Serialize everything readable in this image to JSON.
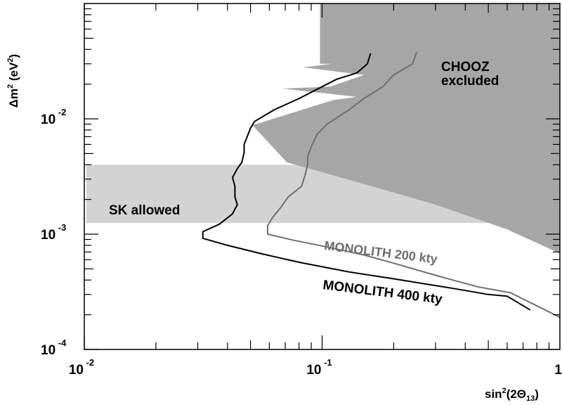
{
  "chart_data": {
    "type": "line",
    "x_scale": "log",
    "y_scale": "log",
    "xlim": [
      0.01,
      1
    ],
    "ylim": [
      0.0001,
      0.1
    ],
    "grid": false,
    "xlabel": "sin²(2Θ₁₃)",
    "ylabel": "Δm² (eV²)",
    "x_ticks": [
      {
        "value": 0.01,
        "base": "10",
        "exp": "-2"
      },
      {
        "value": 0.1,
        "base": "10",
        "exp": "-1"
      },
      {
        "value": 1,
        "base": "1",
        "exp": ""
      }
    ],
    "y_ticks": [
      {
        "value": 0.0001,
        "base": "10",
        "exp": "-4"
      },
      {
        "value": 0.001,
        "base": "10",
        "exp": "-3"
      },
      {
        "value": 0.01,
        "base": "10",
        "exp": "-2"
      }
    ],
    "regions": [
      {
        "name": "SK allowed",
        "label": "SK allowed",
        "color": "#d3d3d3",
        "x_range": [
          0.0102,
          1
        ],
        "y_range": [
          0.00125,
          0.004
        ]
      },
      {
        "name": "CHOOZ excluded",
        "label_line1": "CHOOZ",
        "label_line2": "excluded",
        "color": "#a6a6a6",
        "boundary": [
          [
            0.098,
            0.1
          ],
          [
            0.098,
            0.03
          ],
          [
            0.11,
            0.03
          ],
          [
            0.083,
            0.028
          ],
          [
            0.15,
            0.024
          ],
          [
            0.108,
            0.019
          ],
          [
            0.068,
            0.0183
          ],
          [
            0.14,
            0.0155
          ],
          [
            0.112,
            0.0146
          ],
          [
            0.051,
            0.0088
          ],
          [
            0.064,
            0.0053
          ],
          [
            0.071,
            0.0042
          ],
          [
            0.12,
            0.0031
          ],
          [
            0.2,
            0.0023
          ],
          [
            0.3,
            0.0018
          ],
          [
            0.6,
            0.0011
          ],
          [
            1.0,
            0.00068
          ],
          [
            1.0,
            0.1
          ]
        ]
      }
    ],
    "series": [
      {
        "name": "MONOLITH 400 kty",
        "color": "#000000",
        "points": [
          [
            0.16,
            0.037
          ],
          [
            0.155,
            0.03
          ],
          [
            0.14,
            0.025
          ],
          [
            0.115,
            0.022
          ],
          [
            0.1,
            0.019
          ],
          [
            0.08,
            0.015
          ],
          [
            0.063,
            0.012
          ],
          [
            0.052,
            0.0095
          ],
          [
            0.05,
            0.0083
          ],
          [
            0.047,
            0.006
          ],
          [
            0.047,
            0.0051
          ],
          [
            0.046,
            0.0042
          ],
          [
            0.044,
            0.0037
          ],
          [
            0.042,
            0.0031
          ],
          [
            0.043,
            0.0026
          ],
          [
            0.043,
            0.0021
          ],
          [
            0.044,
            0.0018
          ],
          [
            0.042,
            0.0015
          ],
          [
            0.037,
            0.00122
          ],
          [
            0.0315,
            0.00105
          ],
          [
            0.0315,
            0.00092
          ],
          [
            0.04,
            0.0008
          ],
          [
            0.055,
            0.00068
          ],
          [
            0.08,
            0.00057
          ],
          [
            0.13,
            0.00047
          ],
          [
            0.2,
            0.00041
          ],
          [
            0.35,
            0.00034
          ],
          [
            0.5,
            0.0003
          ],
          [
            0.6,
            0.00029
          ],
          [
            0.75,
            0.00022
          ]
        ]
      },
      {
        "name": "MONOLITH 200 kty",
        "color": "#6e6e6e",
        "points": [
          [
            0.25,
            0.038
          ],
          [
            0.24,
            0.03
          ],
          [
            0.2,
            0.024
          ],
          [
            0.18,
            0.019
          ],
          [
            0.15,
            0.015
          ],
          [
            0.13,
            0.012
          ],
          [
            0.105,
            0.009
          ],
          [
            0.095,
            0.0073
          ],
          [
            0.09,
            0.0057
          ],
          [
            0.087,
            0.0047
          ],
          [
            0.087,
            0.0041
          ],
          [
            0.085,
            0.0033
          ],
          [
            0.082,
            0.0026
          ],
          [
            0.072,
            0.0021
          ],
          [
            0.067,
            0.0017
          ],
          [
            0.062,
            0.0014
          ],
          [
            0.059,
            0.00118
          ],
          [
            0.059,
            0.001
          ],
          [
            0.075,
            0.00089
          ],
          [
            0.1,
            0.00079
          ],
          [
            0.15,
            0.00066
          ],
          [
            0.2,
            0.00056
          ],
          [
            0.3,
            0.00044
          ],
          [
            0.45,
            0.00035
          ],
          [
            0.62,
            0.00031
          ],
          [
            1.0,
            0.00019
          ]
        ]
      }
    ],
    "annotations": {
      "sk_allowed": "SK allowed",
      "chooz_line1": "CHOOZ",
      "chooz_line2": "excluded",
      "monolith_200": "MONOLITH 200 kty",
      "monolith_400": "MONOLITH 400 kty"
    },
    "label_parts": {
      "y_delta": "Δ",
      "y_m": "m",
      "y_sup": "2",
      "y_unit_open": " (eV",
      "y_unit_close": ")",
      "x_sin": "sin",
      "x_sup": "2",
      "x_arg_open": "(2Θ",
      "x_sub": "13",
      "x_arg_close": ")"
    }
  }
}
